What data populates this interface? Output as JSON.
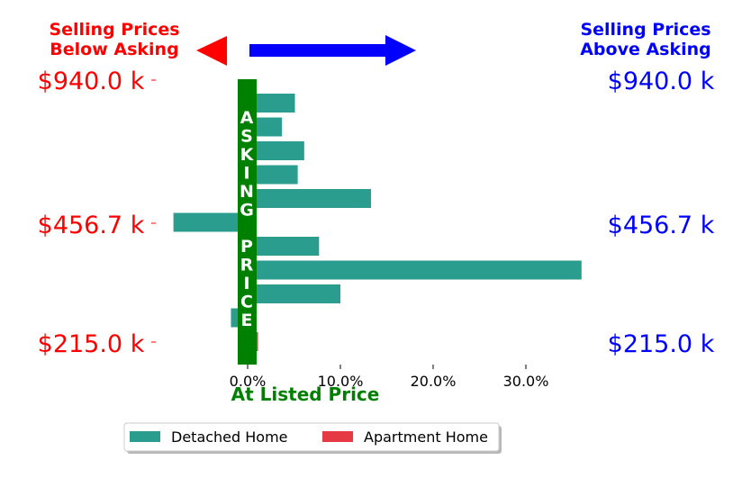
{
  "header": {
    "left_title": [
      "Selling Prices",
      "Below Asking"
    ],
    "right_title": [
      "Selling Prices",
      "Above Asking"
    ]
  },
  "price_labels": [
    "$940.0 k",
    "$456.7 k",
    "$215.0 k"
  ],
  "asking_label": "ASKING PRICE",
  "xlabel": "At Listed Price",
  "legend": [
    "Detached Home",
    "Apartment Home"
  ],
  "colors": {
    "detached": "#2a9d8f",
    "apartment": "#e63946",
    "asking_band": "#008000",
    "below_accent": "#ff0000",
    "above_accent": "#0000ff",
    "xlabel": "#008000"
  },
  "chart_data": {
    "type": "bar",
    "orientation": "horizontal",
    "xlim": [
      -0.08,
      0.36
    ],
    "xticks": [
      0,
      0.1,
      0.2,
      0.3
    ],
    "xtick_labels": [
      "0.0%",
      "10.0%",
      "20.0%",
      "30.0%"
    ],
    "series": [
      {
        "name": "Detached Home",
        "values": [
          0.051,
          0.037,
          0.061,
          0.054,
          0.133,
          -0.08,
          0.077,
          0.36,
          0.1,
          -0.018
        ]
      },
      {
        "name": "Apartment Home",
        "values": [
          0.001
        ]
      }
    ]
  }
}
